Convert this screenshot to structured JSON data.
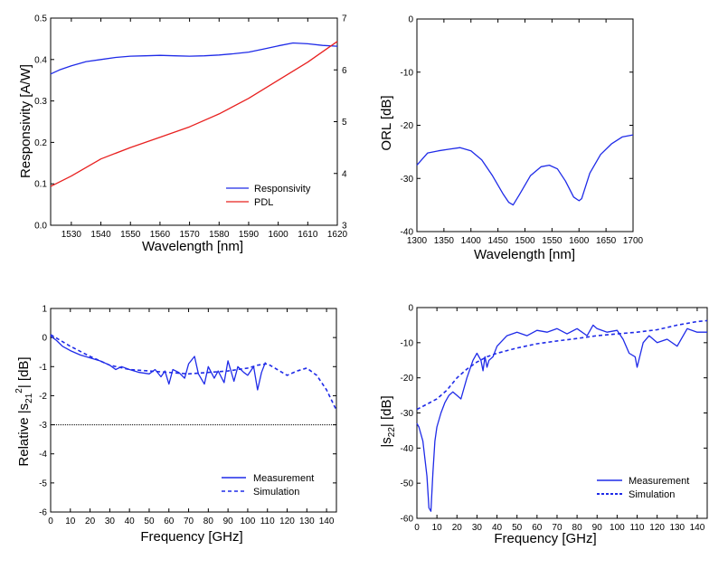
{
  "chart_data": [
    {
      "type": "line",
      "xlabel": "Wavelength  [nm]",
      "ylabel": "Responsivity  [A/W]",
      "xlim": [
        1523,
        1620
      ],
      "ylim": [
        0,
        0.5
      ],
      "y2lim": [
        3,
        7
      ],
      "xticks": [
        "1530",
        "1540",
        "1550",
        "1560",
        "1570",
        "1580",
        "1590",
        "1600",
        "1610",
        "1620"
      ],
      "yticks": [
        "0.0",
        "0.1",
        "0.2",
        "0.3",
        "0.4",
        "0.5"
      ],
      "y2ticks": [
        "3",
        "4",
        "5",
        "6",
        "7"
      ],
      "legend_position": "bottom-right",
      "series": [
        {
          "name": "Responsivity",
          "axis": "left",
          "color": "#1f2be8",
          "style": "solid",
          "x": [
            1523,
            1526,
            1530,
            1535,
            1540,
            1545,
            1550,
            1555,
            1560,
            1565,
            1570,
            1575,
            1580,
            1585,
            1590,
            1595,
            1600,
            1605,
            1610,
            1615,
            1620
          ],
          "y": [
            0.365,
            0.375,
            0.385,
            0.395,
            0.4,
            0.405,
            0.408,
            0.409,
            0.41,
            0.409,
            0.408,
            0.409,
            0.411,
            0.414,
            0.418,
            0.425,
            0.433,
            0.44,
            0.438,
            0.434,
            0.432
          ]
        },
        {
          "name": "PDL",
          "axis": "right",
          "color": "#e8201f",
          "style": "solid",
          "x": [
            1523,
            1530,
            1540,
            1550,
            1560,
            1570,
            1580,
            1590,
            1600,
            1610,
            1615,
            1620
          ],
          "y": [
            3.75,
            3.95,
            4.28,
            4.5,
            4.7,
            4.9,
            5.15,
            5.45,
            5.8,
            6.15,
            6.35,
            6.55
          ]
        }
      ]
    },
    {
      "type": "line",
      "xlabel": "Wavelength  [nm]",
      "ylabel": "ORL  [dB]",
      "xlim": [
        1300,
        1700
      ],
      "ylim": [
        -40,
        0
      ],
      "xticks": [
        "1300",
        "1350",
        "1400",
        "1450",
        "1500",
        "1550",
        "1600",
        "1650",
        "1700"
      ],
      "yticks": [
        "0",
        "-10",
        "-20",
        "-30",
        "-40"
      ],
      "series": [
        {
          "color": "#1f2be8",
          "style": "solid",
          "x": [
            1300,
            1320,
            1340,
            1360,
            1380,
            1400,
            1420,
            1440,
            1460,
            1470,
            1478,
            1490,
            1510,
            1530,
            1545,
            1560,
            1575,
            1590,
            1600,
            1605,
            1620,
            1640,
            1660,
            1680,
            1700
          ],
          "y": [
            -27.5,
            -25.2,
            -24.8,
            -24.5,
            -24.2,
            -24.8,
            -26.5,
            -29.5,
            -33.0,
            -34.5,
            -35.0,
            -33.0,
            -29.5,
            -27.8,
            -27.5,
            -28.2,
            -30.5,
            -33.5,
            -34.2,
            -33.8,
            -29.0,
            -25.5,
            -23.5,
            -22.2,
            -21.8
          ]
        }
      ]
    },
    {
      "type": "line",
      "xlabel": "Frequency  [GHz]",
      "ylabel_main": "Relative |s",
      "ylabel_sub": "21",
      "ylabel_sup": "2",
      "ylabel_end": "|  [dB]",
      "xlim": [
        0,
        145
      ],
      "ylim": [
        -6,
        1
      ],
      "hline": -3,
      "xticks": [
        "0",
        "10",
        "20",
        "30",
        "40",
        "50",
        "60",
        "70",
        "80",
        "90",
        "100",
        "110",
        "120",
        "130",
        "140"
      ],
      "yticks": [
        "1",
        "0",
        "-1",
        "-2",
        "-3",
        "-4",
        "-5",
        "-6"
      ],
      "legend_position": "bottom-right",
      "series": [
        {
          "name": "Measurement",
          "color": "#1f2be8",
          "style": "solid",
          "x": [
            0,
            3,
            6,
            10,
            15,
            20,
            25,
            30,
            33,
            36,
            40,
            45,
            50,
            53,
            56,
            58,
            60,
            62,
            65,
            68,
            70,
            73,
            75,
            78,
            80,
            83,
            85,
            88,
            90,
            93,
            95,
            98,
            100,
            103,
            105,
            107,
            109
          ],
          "y": [
            0.05,
            -0.1,
            -0.3,
            -0.45,
            -0.6,
            -0.7,
            -0.8,
            -0.95,
            -1.1,
            -1.0,
            -1.1,
            -1.2,
            -1.25,
            -1.1,
            -1.35,
            -1.15,
            -1.6,
            -1.1,
            -1.2,
            -1.4,
            -0.9,
            -0.65,
            -1.25,
            -1.6,
            -1.0,
            -1.4,
            -1.15,
            -1.55,
            -0.8,
            -1.5,
            -1.0,
            -1.2,
            -1.3,
            -1.0,
            -1.8,
            -1.2,
            -0.85
          ]
        },
        {
          "name": "Simulation",
          "color": "#1f2be8",
          "style": "dashed",
          "x": [
            0,
            10,
            20,
            30,
            40,
            50,
            60,
            70,
            80,
            90,
            100,
            105,
            110,
            115,
            120,
            125,
            130,
            135,
            140,
            145
          ],
          "y": [
            0.1,
            -0.3,
            -0.65,
            -0.95,
            -1.1,
            -1.15,
            -1.2,
            -1.25,
            -1.2,
            -1.15,
            -1.05,
            -0.95,
            -0.9,
            -1.1,
            -1.3,
            -1.15,
            -1.05,
            -1.3,
            -1.8,
            -2.5
          ]
        }
      ]
    },
    {
      "type": "line",
      "xlabel": "Frequency  [GHz]",
      "ylabel_main": "|s",
      "ylabel_sub": "22",
      "ylabel_end": "|  [dB]",
      "xlim": [
        0,
        145
      ],
      "ylim": [
        -60,
        0
      ],
      "xticks": [
        "0",
        "10",
        "20",
        "30",
        "40",
        "50",
        "60",
        "70",
        "80",
        "90",
        "100",
        "110",
        "120",
        "130",
        "140"
      ],
      "yticks": [
        "0",
        "-10",
        "-20",
        "-30",
        "-40",
        "-50",
        "-60"
      ],
      "legend_position": "bottom-right",
      "series": [
        {
          "name": "Measurement",
          "color": "#1f2be8",
          "style": "solid",
          "x": [
            0,
            1,
            3,
            5,
            6,
            7,
            8,
            9,
            10,
            12,
            14,
            16,
            18,
            20,
            22,
            25,
            28,
            30,
            32,
            33,
            34,
            35,
            36,
            38,
            40,
            45,
            50,
            55,
            60,
            65,
            70,
            75,
            80,
            85,
            88,
            90,
            95,
            100,
            103,
            106,
            109,
            110,
            113,
            116,
            120,
            125,
            130,
            135,
            140,
            145
          ],
          "y": [
            -33,
            -34,
            -38,
            -48,
            -57,
            -58,
            -47,
            -38,
            -34,
            -30,
            -27,
            -25,
            -24,
            -25,
            -26,
            -20,
            -15,
            -13,
            -15,
            -18,
            -14,
            -17,
            -15,
            -14,
            -11,
            -8,
            -7,
            -8,
            -6.5,
            -7,
            -6,
            -7.5,
            -6,
            -8,
            -5,
            -6,
            -7,
            -6.5,
            -9,
            -13,
            -14,
            -17,
            -10,
            -8,
            -10,
            -9,
            -11,
            -6,
            -7,
            -7
          ]
        },
        {
          "name": "Simulation",
          "color": "#1f2be8",
          "style": "dashed",
          "x": [
            0,
            5,
            10,
            15,
            20,
            25,
            30,
            35,
            40,
            50,
            60,
            70,
            80,
            90,
            100,
            110,
            120,
            130,
            140,
            145
          ],
          "y": [
            -29,
            -27.5,
            -26,
            -23.5,
            -20,
            -17.5,
            -15.5,
            -14,
            -13,
            -11.5,
            -10.3,
            -9.5,
            -8.8,
            -8,
            -7.5,
            -7,
            -6.3,
            -5,
            -4,
            -3.7
          ]
        }
      ]
    }
  ]
}
